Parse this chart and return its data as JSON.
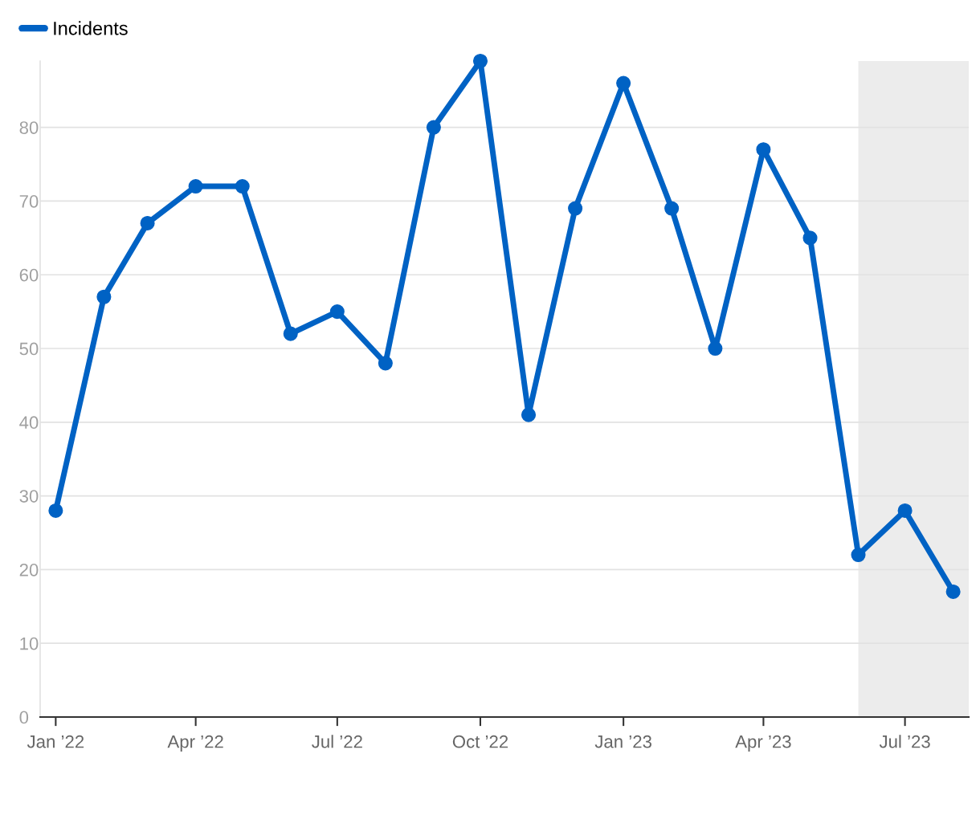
{
  "chart_data": {
    "type": "line",
    "x": [
      "2022-01",
      "2022-02",
      "2022-03",
      "2022-04",
      "2022-05",
      "2022-06",
      "2022-07",
      "2022-08",
      "2022-09",
      "2022-10",
      "2022-11",
      "2022-12",
      "2023-01",
      "2023-02",
      "2023-03",
      "2023-04",
      "2023-05",
      "2023-06",
      "2023-07",
      "2023-08"
    ],
    "series": [
      {
        "name": "Incidents",
        "color": "#0062c4",
        "values": [
          28,
          57,
          67,
          72,
          72,
          52,
          55,
          48,
          80,
          89,
          41,
          69,
          86,
          69,
          50,
          77,
          65,
          22,
          28,
          17
        ]
      }
    ],
    "xlim": [
      "2021-12-22",
      "2023-08-11"
    ],
    "xticks": [
      {
        "value": "2022-01",
        "label": "Jan ’22"
      },
      {
        "value": "2022-04",
        "label": "Apr ’22"
      },
      {
        "value": "2022-07",
        "label": "Jul ’22"
      },
      {
        "value": "2022-10",
        "label": "Oct ’22"
      },
      {
        "value": "2023-01",
        "label": "Jan ’23"
      },
      {
        "value": "2023-04",
        "label": "Apr ’23"
      },
      {
        "value": "2023-07",
        "label": "Jul ’23"
      }
    ],
    "ylim": [
      0,
      89
    ],
    "yticks": [
      0,
      10,
      20,
      30,
      40,
      50,
      60,
      70,
      80
    ],
    "bands": [
      {
        "axis": "x",
        "from": "2023-06",
        "to": "2023-08-11",
        "color": "#ececec"
      }
    ],
    "grid": "y",
    "legend": "top left",
    "marker": "circle",
    "line_style": "solid"
  }
}
